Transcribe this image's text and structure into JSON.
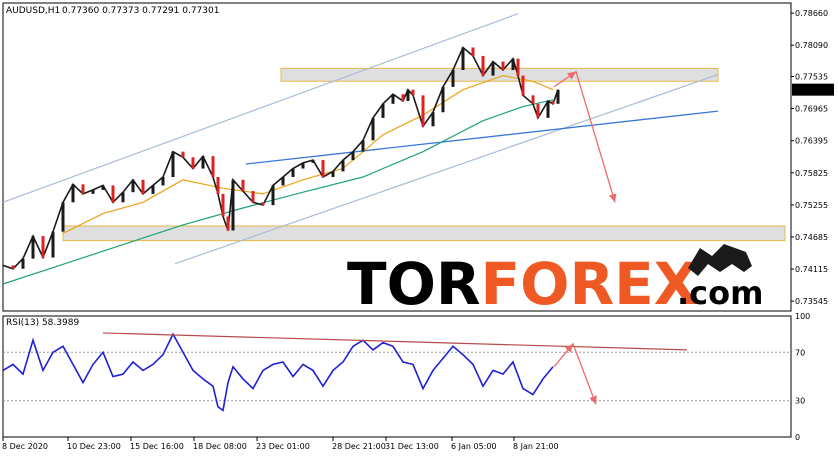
{
  "chart_data": {
    "type": "line",
    "symbol_header": "AUDUSD,H1",
    "ohlc_header": "0.77360 0.77373 0.77291 0.77301",
    "current_price_label": "0.77301",
    "colors": {
      "price": "#1a1a1a",
      "ma_fast": "#e8a317",
      "ma_slow": "#20a080",
      "channel": "#a9bcd6",
      "trendline": "#3a78d8",
      "zone_fill": "#d9d9d9",
      "zone_border": "#e8b84a",
      "forecast_arrow": "#ee6a6a",
      "rsi": "#1f1fd6",
      "rsi_trend": "#b84a4a",
      "current_price_box": "#000000"
    },
    "y_ticks": [
      "0.78660",
      "0.78090",
      "0.77535",
      "0.76965",
      "0.76395",
      "0.75825",
      "0.75255",
      "0.74685",
      "0.74115",
      "0.73545"
    ],
    "ylim": [
      0.7337,
      0.7884
    ],
    "x_ticks": [
      "8 Dec 2020",
      "10 Dec 23:00",
      "15 Dec 16:00",
      "18 Dec 08:00",
      "23 Dec 01:00",
      "28 Dec 21:00",
      "31 Dec 13:00",
      "6 Jan 05:00",
      "8 Jan 21:00"
    ],
    "price_series": {
      "name": "AUDUSD",
      "points": [
        [
          0,
          0.7418
        ],
        [
          10,
          0.7412
        ],
        [
          20,
          0.743
        ],
        [
          30,
          0.747
        ],
        [
          40,
          0.7432
        ],
        [
          50,
          0.7478
        ],
        [
          60,
          0.753
        ],
        [
          70,
          0.7562
        ],
        [
          80,
          0.7545
        ],
        [
          90,
          0.7552
        ],
        [
          100,
          0.756
        ],
        [
          110,
          0.753
        ],
        [
          120,
          0.7548
        ],
        [
          130,
          0.757
        ],
        [
          140,
          0.7545
        ],
        [
          150,
          0.756
        ],
        [
          160,
          0.7575
        ],
        [
          170,
          0.762
        ],
        [
          180,
          0.761
        ],
        [
          190,
          0.759
        ],
        [
          200,
          0.7612
        ],
        [
          210,
          0.7575
        ],
        [
          215,
          0.7545
        ],
        [
          220,
          0.7505
        ],
        [
          225,
          0.748
        ],
        [
          230,
          0.757
        ],
        [
          240,
          0.755
        ],
        [
          250,
          0.753
        ],
        [
          260,
          0.7525
        ],
        [
          270,
          0.756
        ],
        [
          280,
          0.7575
        ],
        [
          290,
          0.759
        ],
        [
          300,
          0.76
        ],
        [
          310,
          0.7605
        ],
        [
          320,
          0.7575
        ],
        [
          330,
          0.7585
        ],
        [
          340,
          0.7605
        ],
        [
          350,
          0.762
        ],
        [
          360,
          0.764
        ],
        [
          370,
          0.768
        ],
        [
          380,
          0.7705
        ],
        [
          390,
          0.7722
        ],
        [
          400,
          0.771
        ],
        [
          405,
          0.773
        ],
        [
          410,
          0.772
        ],
        [
          420,
          0.7665
        ],
        [
          430,
          0.769
        ],
        [
          440,
          0.7735
        ],
        [
          450,
          0.7765
        ],
        [
          460,
          0.7805
        ],
        [
          470,
          0.779
        ],
        [
          480,
          0.7755
        ],
        [
          490,
          0.778
        ],
        [
          500,
          0.7765
        ],
        [
          510,
          0.7785
        ],
        [
          515,
          0.7755
        ],
        [
          520,
          0.772
        ],
        [
          530,
          0.7705
        ],
        [
          535,
          0.768
        ],
        [
          545,
          0.771
        ],
        [
          550,
          0.7705
        ],
        [
          555,
          0.773
        ]
      ]
    },
    "ma_fast": {
      "name": "MA fast",
      "points": [
        [
          60,
          0.7475
        ],
        [
          100,
          0.751
        ],
        [
          140,
          0.753
        ],
        [
          180,
          0.757
        ],
        [
          220,
          0.7555
        ],
        [
          260,
          0.7545
        ],
        [
          300,
          0.757
        ],
        [
          340,
          0.759
        ],
        [
          380,
          0.765
        ],
        [
          420,
          0.7685
        ],
        [
          460,
          0.773
        ],
        [
          500,
          0.7755
        ],
        [
          530,
          0.7745
        ],
        [
          550,
          0.773
        ]
      ]
    },
    "ma_slow": {
      "name": "MA slow",
      "points": [
        [
          0,
          0.7385
        ],
        [
          60,
          0.742
        ],
        [
          120,
          0.7455
        ],
        [
          180,
          0.749
        ],
        [
          240,
          0.752
        ],
        [
          300,
          0.7548
        ],
        [
          360,
          0.7575
        ],
        [
          420,
          0.762
        ],
        [
          480,
          0.7675
        ],
        [
          520,
          0.77
        ],
        [
          550,
          0.7712
        ]
      ]
    },
    "channel_upper": [
      [
        0,
        0.753
      ],
      [
        515,
        0.7865
      ]
    ],
    "channel_lower": [
      [
        172,
        0.7421
      ],
      [
        715,
        0.7757
      ]
    ],
    "trendline": [
      [
        243,
        0.7598
      ],
      [
        715,
        0.7692
      ]
    ],
    "zones": [
      {
        "name": "resistance zone",
        "from": 0.7745,
        "to": 0.7768,
        "x_start": 278,
        "x_end": 715
      },
      {
        "name": "support zone",
        "from": 0.7462,
        "to": 0.7488,
        "x_start": 60,
        "x_end": 782
      }
    ],
    "forecast_price": [
      [
        551,
        0.7735
      ],
      [
        573,
        0.7762
      ],
      [
        612,
        0.753
      ]
    ],
    "rsi": {
      "label": "RSI(13) 58.3989",
      "levels": [
        "100",
        "70",
        "30",
        "0"
      ],
      "ylim": [
        0,
        100
      ],
      "points": [
        [
          0,
          55
        ],
        [
          10,
          60
        ],
        [
          20,
          52
        ],
        [
          30,
          80
        ],
        [
          40,
          55
        ],
        [
          50,
          70
        ],
        [
          60,
          75
        ],
        [
          70,
          60
        ],
        [
          80,
          45
        ],
        [
          90,
          60
        ],
        [
          100,
          70
        ],
        [
          110,
          50
        ],
        [
          120,
          52
        ],
        [
          130,
          62
        ],
        [
          140,
          55
        ],
        [
          150,
          60
        ],
        [
          160,
          68
        ],
        [
          170,
          85
        ],
        [
          180,
          70
        ],
        [
          190,
          55
        ],
        [
          200,
          48
        ],
        [
          210,
          42
        ],
        [
          215,
          25
        ],
        [
          220,
          22
        ],
        [
          225,
          45
        ],
        [
          230,
          58
        ],
        [
          240,
          48
        ],
        [
          250,
          40
        ],
        [
          260,
          55
        ],
        [
          270,
          60
        ],
        [
          280,
          62
        ],
        [
          290,
          50
        ],
        [
          300,
          60
        ],
        [
          310,
          55
        ],
        [
          320,
          42
        ],
        [
          330,
          55
        ],
        [
          340,
          62
        ],
        [
          350,
          75
        ],
        [
          360,
          80
        ],
        [
          370,
          72
        ],
        [
          380,
          78
        ],
        [
          390,
          75
        ],
        [
          400,
          62
        ],
        [
          410,
          60
        ],
        [
          420,
          40
        ],
        [
          430,
          55
        ],
        [
          440,
          65
        ],
        [
          450,
          75
        ],
        [
          460,
          68
        ],
        [
          470,
          60
        ],
        [
          480,
          42
        ],
        [
          490,
          55
        ],
        [
          500,
          52
        ],
        [
          510,
          62
        ],
        [
          520,
          40
        ],
        [
          530,
          35
        ],
        [
          540,
          48
        ],
        [
          550,
          58
        ]
      ],
      "trend": [
        [
          100,
          86
        ],
        [
          684,
          72
        ]
      ],
      "forecast": [
        [
          551,
          58
        ],
        [
          570,
          77
        ],
        [
          593,
          27
        ]
      ]
    }
  },
  "watermark": {
    "part1": "TOR",
    "part2": "FOREX",
    "part3": ".com"
  }
}
